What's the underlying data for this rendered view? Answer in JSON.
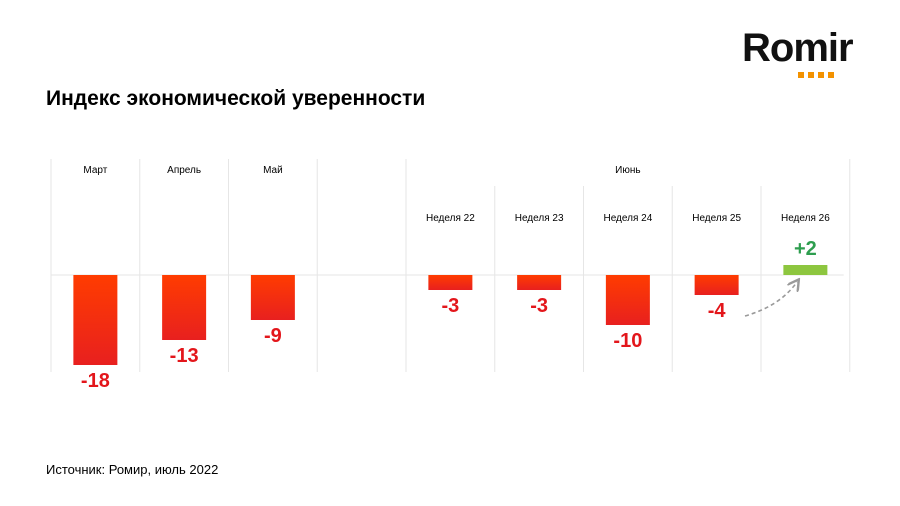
{
  "logo": {
    "text": "Romir",
    "accent_color": "#f39200"
  },
  "title": "Индекс экономической уверенности",
  "source": "Источник: Ромир, июль 2022",
  "chart_data": {
    "type": "bar",
    "group_label": "Июнь",
    "categories": [
      "Март",
      "Апрель",
      "Май",
      "Неделя 22",
      "Неделя 23",
      "Неделя 24",
      "Неделя 25",
      "Неделя 26"
    ],
    "values": [
      -18,
      -13,
      -9,
      -3,
      -3,
      -10,
      -4,
      2
    ],
    "value_labels": [
      "-18",
      "-13",
      "-9",
      "-3",
      "-3",
      "-10",
      "-4",
      "+2"
    ],
    "colors": {
      "negative_top": "#ff3c00",
      "negative_bottom": "#e8201f",
      "negative_label": "#e3161b",
      "positive_bar": "#8dc63f",
      "positive_label": "#2e9e4f",
      "grid": "#e6e6e6",
      "arrow": "#9a9a9a"
    },
    "grid": true,
    "legend": "none"
  }
}
